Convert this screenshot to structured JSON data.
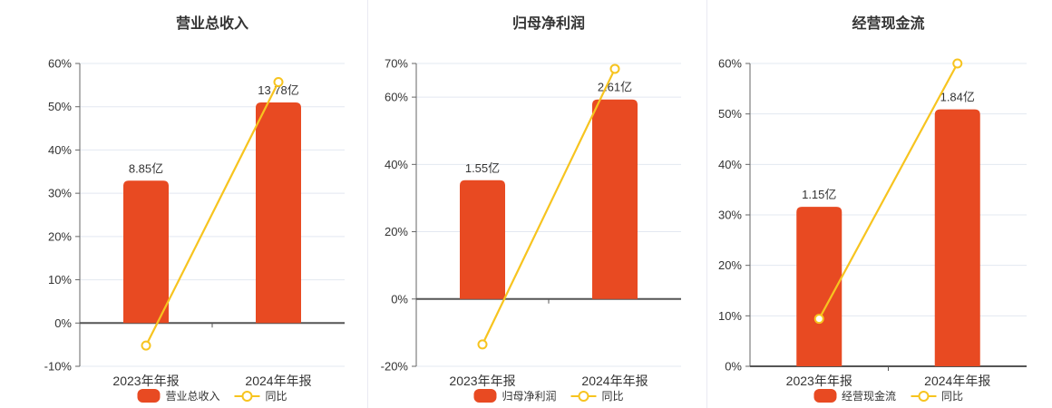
{
  "colors": {
    "bar": "#E84A22",
    "line": "#F7C41F",
    "grid": "#E3E8F1",
    "axis": "#666666",
    "zero_axis": "#555555",
    "text": "#333333",
    "divider": "#E9E9F2",
    "background": "#ffffff"
  },
  "chart_data": [
    {
      "type": "bar+line",
      "title": "营业总收入",
      "categories": [
        "2023年年报",
        "2024年年报"
      ],
      "bar_series": {
        "name": "营业总收入",
        "unit": "亿",
        "values": [
          8.85,
          13.78
        ],
        "labels": [
          "8.85亿",
          "13.78亿"
        ],
        "bar_top_pct": [
          32.9,
          51.0
        ]
      },
      "line_series": {
        "name": "同比",
        "values_pct": [
          -5.2,
          55.7
        ]
      },
      "y_axis": {
        "min": -10,
        "max": 60,
        "ticks": [
          60,
          50,
          40,
          30,
          20,
          10,
          0,
          -10
        ],
        "tick_suffix": "%"
      },
      "legend_position": "bottom",
      "grid": true
    },
    {
      "type": "bar+line",
      "title": "归母净利润",
      "categories": [
        "2023年年报",
        "2024年年报"
      ],
      "bar_series": {
        "name": "归母净利润",
        "unit": "亿",
        "values": [
          1.55,
          2.61
        ],
        "labels": [
          "1.55亿",
          "2.61亿"
        ],
        "bar_top_pct": [
          35.3,
          59.3
        ]
      },
      "line_series": {
        "name": "同比",
        "values_pct": [
          -13.5,
          68.4
        ]
      },
      "y_axis": {
        "min": -20,
        "max": 70,
        "ticks": [
          70,
          60,
          40,
          20,
          0,
          -20
        ],
        "tick_suffix": "%"
      },
      "legend_position": "bottom",
      "grid": true
    },
    {
      "type": "bar+line",
      "title": "经营现金流",
      "categories": [
        "2023年年报",
        "2024年年报"
      ],
      "bar_series": {
        "name": "经营现金流",
        "unit": "亿",
        "values": [
          1.15,
          1.84
        ],
        "labels": [
          "1.15亿",
          "1.84亿"
        ],
        "bar_top_pct": [
          31.6,
          50.9
        ]
      },
      "line_series": {
        "name": "同比",
        "values_pct": [
          9.4,
          60.0
        ]
      },
      "y_axis": {
        "min": 0,
        "max": 60,
        "ticks": [
          60,
          50,
          40,
          30,
          20,
          10,
          0
        ],
        "tick_suffix": "%"
      },
      "legend_position": "bottom",
      "grid": true
    }
  ]
}
